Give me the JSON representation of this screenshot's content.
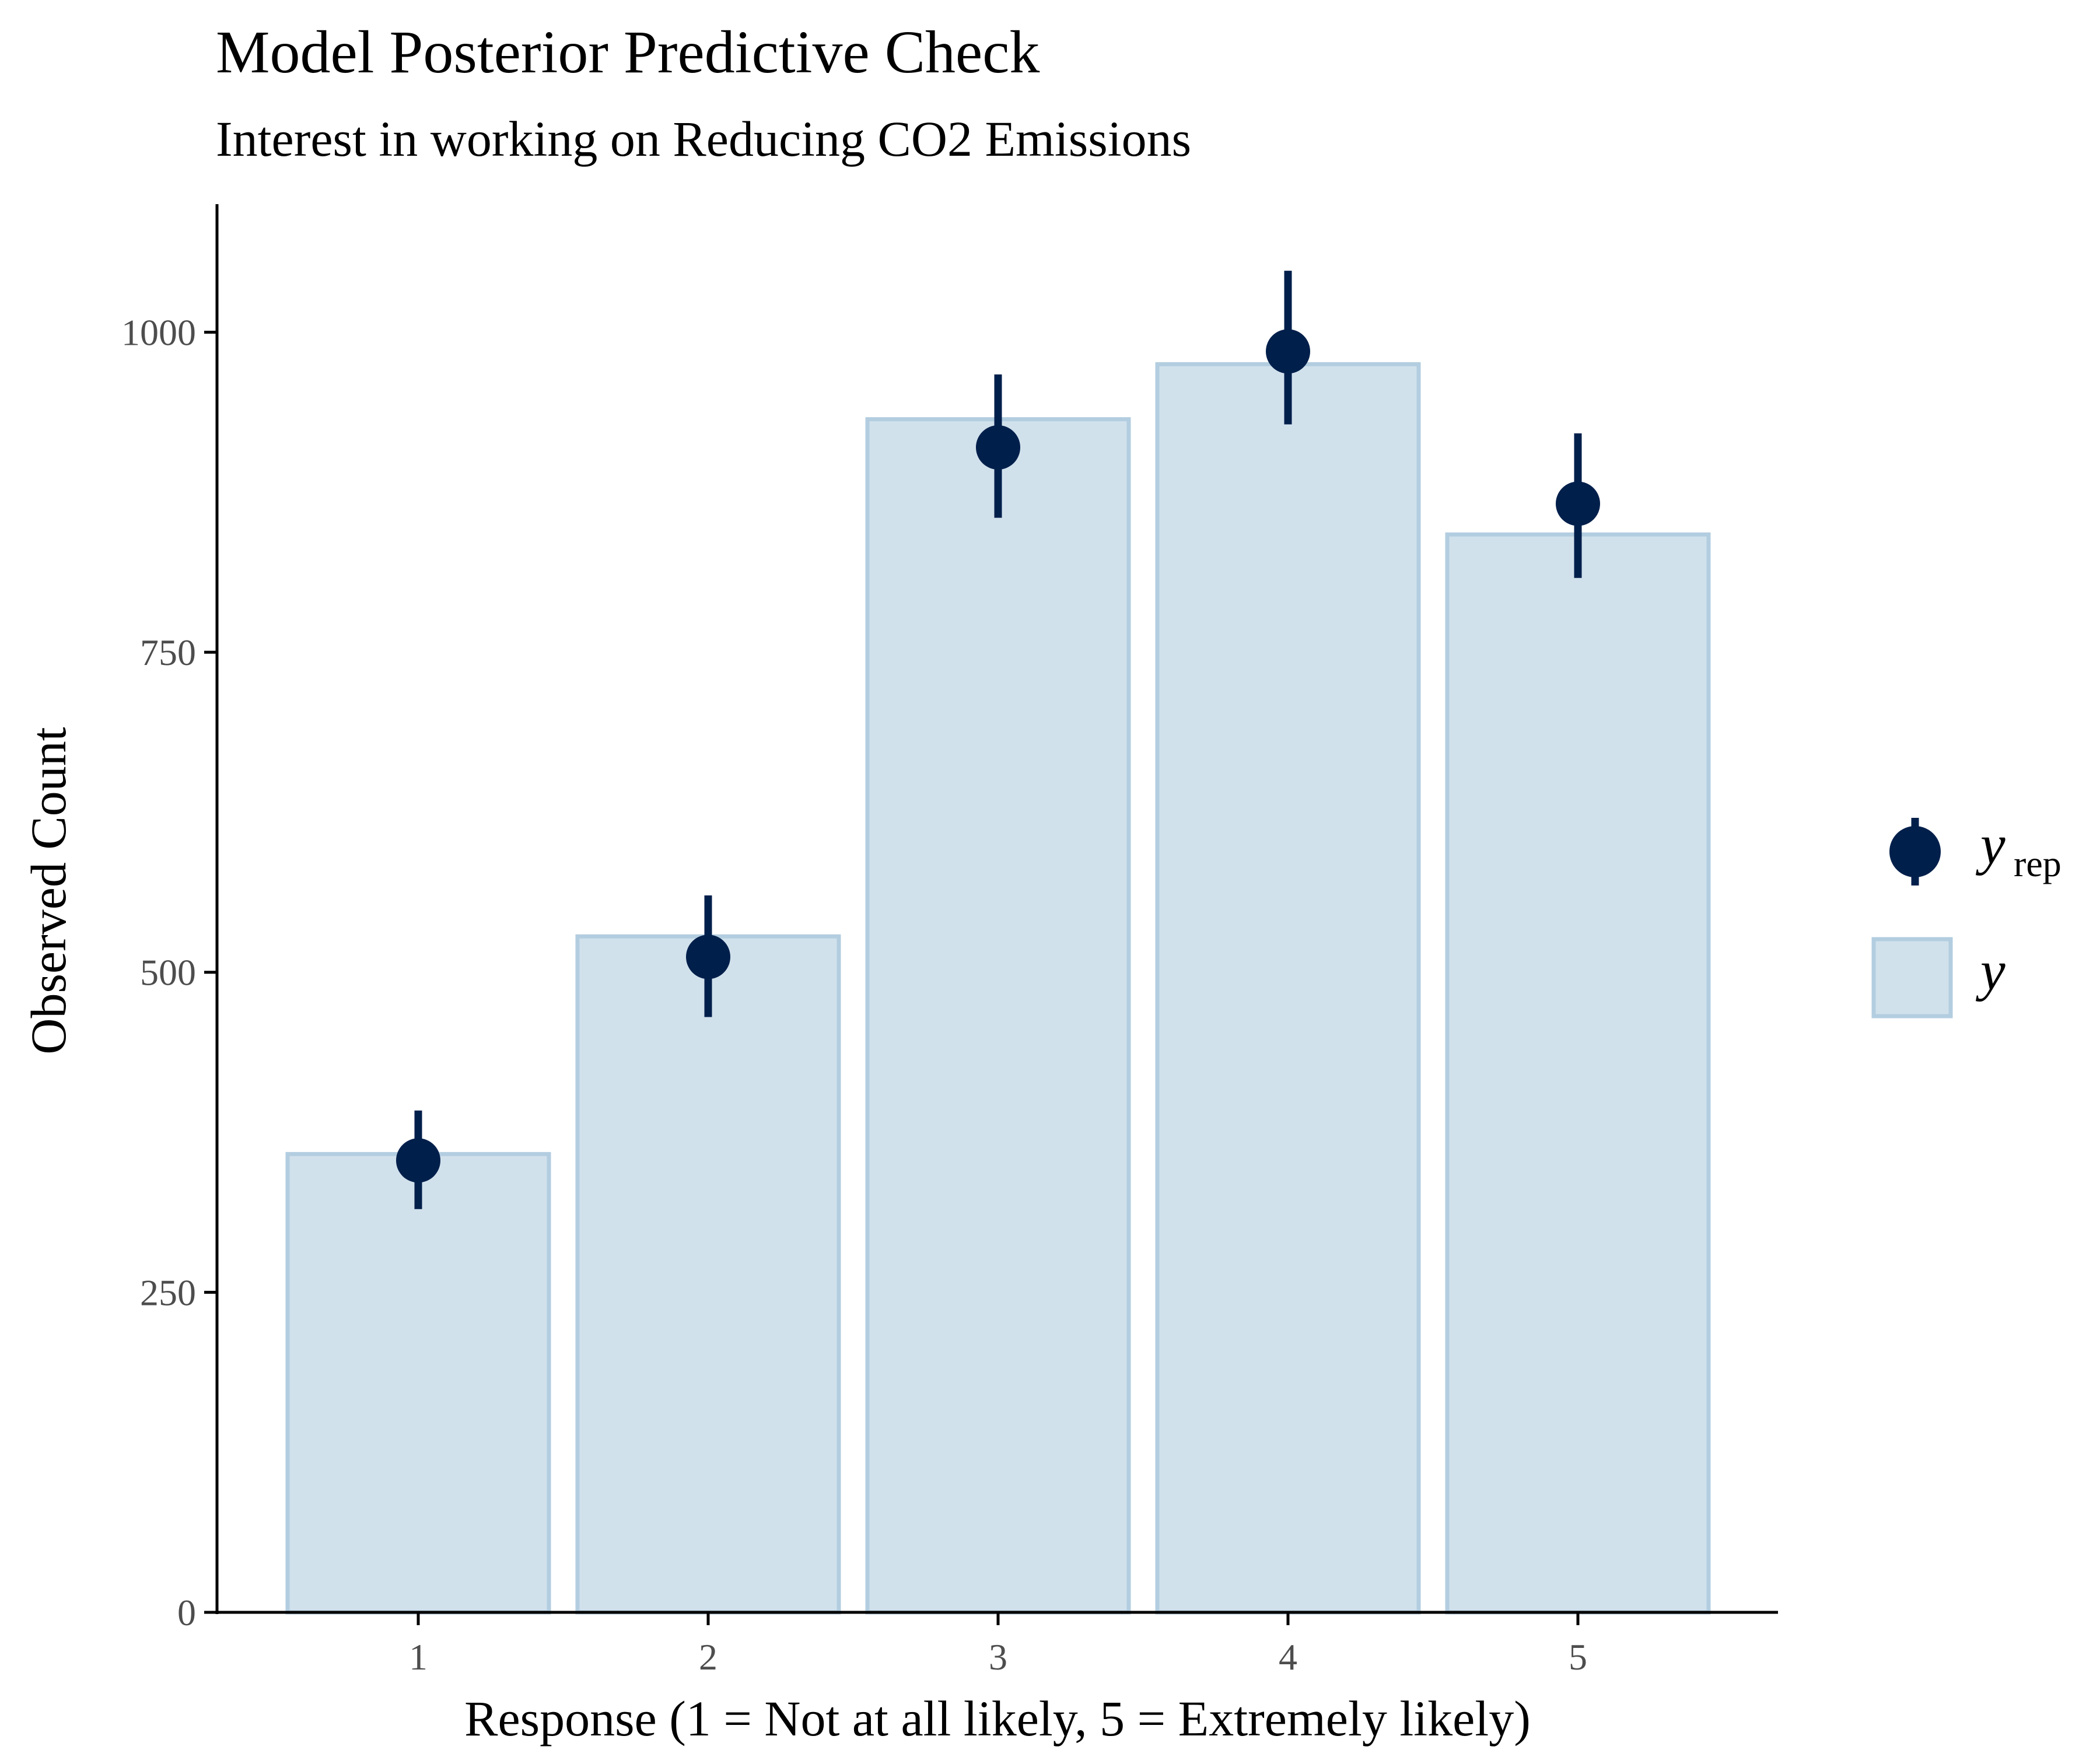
{
  "chart_data": {
    "type": "bar",
    "title": "Model Posterior Predictive Check",
    "subtitle": "Interest in working on Reducing CO2 Emissions",
    "xlabel": "Response (1 = Not at all likely, 5 = Extremely likely)",
    "ylabel": "Observed Count",
    "categories": [
      "1",
      "2",
      "3",
      "4",
      "5"
    ],
    "ylim": [
      0,
      1100
    ],
    "yticks": [
      0,
      250,
      500,
      750,
      1000
    ],
    "ytick_labels": [
      "0",
      "250",
      "500",
      "750",
      "1000"
    ],
    "grid": false,
    "legend_position": "right",
    "series": [
      {
        "name": "y",
        "kind": "bar",
        "values": [
          358,
          528,
          932,
          975,
          842
        ]
      },
      {
        "name": "y_rep",
        "kind": "pointrange",
        "values": [
          353,
          512,
          910,
          985,
          866
        ],
        "lower": [
          315,
          465,
          855,
          928,
          808
        ],
        "upper": [
          392,
          560,
          967,
          1048,
          921
        ]
      }
    ],
    "legend": [
      {
        "main": "y",
        "sub": "rep"
      },
      {
        "main": "y",
        "sub": ""
      }
    ],
    "colors": {
      "bar_fill": "#d1e1ec",
      "bar_stroke": "#b3cde0",
      "point": "#011f4b",
      "axis": "#000000",
      "tick_label": "#4d4d4d"
    }
  }
}
